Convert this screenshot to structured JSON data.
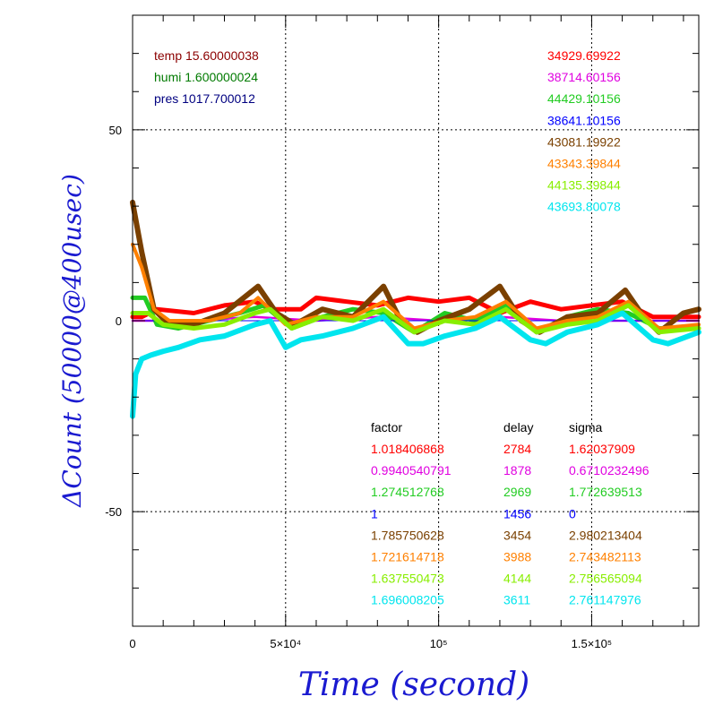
{
  "chart_data": {
    "type": "line",
    "xlabel": "Time (second)",
    "ylabel": "ΔCount (50000@400usec)",
    "xlim": [
      0,
      185000
    ],
    "ylim": [
      -80,
      80
    ],
    "x_ticks": [
      {
        "value": 0,
        "label": "0"
      },
      {
        "value": 50000,
        "label": "5×10⁴"
      },
      {
        "value": 100000,
        "label": "10⁵"
      },
      {
        "value": 150000,
        "label": "1.5×10⁵"
      }
    ],
    "y_ticks": [
      {
        "value": 50,
        "label": "50"
      },
      {
        "value": 0,
        "label": "0"
      },
      {
        "value": -50,
        "label": "-50"
      }
    ],
    "grid": true,
    "env": [
      {
        "text": "temp 15.60000038",
        "color": "#8b0000"
      },
      {
        "text": "humi 1.600000024",
        "color": "#007a00"
      },
      {
        "text": "pres 1017.700012",
        "color": "#000080"
      }
    ],
    "table_headers": [
      "factor",
      "delay",
      "sigma"
    ],
    "series": [
      {
        "color": "#ff0000",
        "mean": "34929.69922",
        "factor": "1.018406868",
        "delay": "2784",
        "sigma": "1.62037909",
        "points": [
          [
            0,
            1
          ],
          [
            3000,
            1
          ],
          [
            8000,
            3
          ],
          [
            20000,
            2
          ],
          [
            30000,
            4
          ],
          [
            40000,
            5
          ],
          [
            45000,
            3
          ],
          [
            55000,
            3
          ],
          [
            60000,
            6
          ],
          [
            70000,
            5
          ],
          [
            80000,
            4
          ],
          [
            90000,
            6
          ],
          [
            100000,
            5
          ],
          [
            110000,
            6
          ],
          [
            120000,
            2
          ],
          [
            130000,
            5
          ],
          [
            140000,
            3
          ],
          [
            150000,
            4
          ],
          [
            160000,
            5
          ],
          [
            170000,
            1
          ],
          [
            185000,
            1
          ]
        ]
      },
      {
        "color": "#e000e0",
        "mean": "38714.60156",
        "factor": "0.9940540791",
        "delay": "1878",
        "sigma": "0.6710232496",
        "points": [
          [
            0,
            0
          ],
          [
            20000,
            0
          ],
          [
            40000,
            1
          ],
          [
            60000,
            0
          ],
          [
            80000,
            1
          ],
          [
            100000,
            0
          ],
          [
            120000,
            1
          ],
          [
            140000,
            0
          ],
          [
            160000,
            0
          ],
          [
            185000,
            0
          ]
        ]
      },
      {
        "color": "#22cc22",
        "mean": "44429.10156",
        "factor": "1.274512768",
        "delay": "2969",
        "sigma": "1.772639513",
        "points": [
          [
            0,
            6
          ],
          [
            4000,
            6
          ],
          [
            8000,
            -1
          ],
          [
            15000,
            -2
          ],
          [
            25000,
            0
          ],
          [
            35000,
            2
          ],
          [
            43000,
            4
          ],
          [
            52000,
            -2
          ],
          [
            62000,
            1
          ],
          [
            72000,
            3
          ],
          [
            82000,
            2
          ],
          [
            92000,
            -3
          ],
          [
            102000,
            2
          ],
          [
            112000,
            0
          ],
          [
            122000,
            4
          ],
          [
            132000,
            -3
          ],
          [
            142000,
            1
          ],
          [
            152000,
            3
          ],
          [
            162000,
            2
          ],
          [
            172000,
            -2
          ],
          [
            185000,
            -2
          ]
        ]
      },
      {
        "color": "#0000ff",
        "mean": "38641.10156",
        "factor": "1",
        "delay": "1456",
        "sigma": "0",
        "points": [
          [
            0,
            0
          ],
          [
            185000,
            0
          ]
        ]
      },
      {
        "color": "#7a4000",
        "mean": "43081.19922",
        "factor": "1.785750628",
        "delay": "3454",
        "sigma": "2.980213404",
        "points": [
          [
            0,
            31
          ],
          [
            3000,
            18
          ],
          [
            7000,
            3
          ],
          [
            12000,
            -1
          ],
          [
            20000,
            -1
          ],
          [
            30000,
            2
          ],
          [
            41000,
            9
          ],
          [
            47000,
            2
          ],
          [
            53000,
            -1
          ],
          [
            62000,
            3
          ],
          [
            72000,
            1
          ],
          [
            82000,
            9
          ],
          [
            87000,
            1
          ],
          [
            93000,
            -3
          ],
          [
            100000,
            0
          ],
          [
            110000,
            3
          ],
          [
            120000,
            9
          ],
          [
            127000,
            0
          ],
          [
            133000,
            -3
          ],
          [
            142000,
            1
          ],
          [
            152000,
            2
          ],
          [
            161000,
            8
          ],
          [
            167000,
            1
          ],
          [
            172000,
            -3
          ],
          [
            180000,
            2
          ],
          [
            185000,
            3
          ]
        ]
      },
      {
        "color": "#ff8000",
        "mean": "43343.39844",
        "factor": "1.721614718",
        "delay": "3988",
        "sigma": "2.743482113",
        "points": [
          [
            0,
            20
          ],
          [
            3000,
            14
          ],
          [
            7000,
            3
          ],
          [
            12000,
            0
          ],
          [
            25000,
            0
          ],
          [
            35000,
            2
          ],
          [
            41000,
            6
          ],
          [
            50000,
            -1
          ],
          [
            60000,
            1
          ],
          [
            72000,
            1
          ],
          [
            82000,
            5
          ],
          [
            92000,
            -2
          ],
          [
            102000,
            0
          ],
          [
            112000,
            1
          ],
          [
            122000,
            5
          ],
          [
            132000,
            -2
          ],
          [
            142000,
            0
          ],
          [
            152000,
            1
          ],
          [
            162000,
            5
          ],
          [
            172000,
            -2
          ],
          [
            185000,
            -1
          ]
        ]
      },
      {
        "color": "#88ee00",
        "mean": "44135.39844",
        "factor": "1.637550473",
        "delay": "4144",
        "sigma": "2.756565094",
        "points": [
          [
            0,
            2
          ],
          [
            5000,
            2
          ],
          [
            10000,
            -1
          ],
          [
            20000,
            -2
          ],
          [
            30000,
            -1
          ],
          [
            40000,
            2
          ],
          [
            45000,
            3
          ],
          [
            52000,
            -2
          ],
          [
            62000,
            1
          ],
          [
            72000,
            0
          ],
          [
            82000,
            3
          ],
          [
            92000,
            -3
          ],
          [
            102000,
            0
          ],
          [
            112000,
            -1
          ],
          [
            122000,
            3
          ],
          [
            132000,
            -3
          ],
          [
            142000,
            -1
          ],
          [
            152000,
            0
          ],
          [
            162000,
            4
          ],
          [
            172000,
            -3
          ],
          [
            185000,
            -2
          ]
        ]
      },
      {
        "color": "#00e5ee",
        "mean": "43693.80078",
        "factor": "1.696008205",
        "delay": "3611",
        "sigma": "2.761147976",
        "points": [
          [
            0,
            -25
          ],
          [
            1000,
            -14
          ],
          [
            3000,
            -10
          ],
          [
            6000,
            -9
          ],
          [
            10000,
            -8
          ],
          [
            15000,
            -7
          ],
          [
            22000,
            -5
          ],
          [
            30000,
            -4
          ],
          [
            40000,
            -1
          ],
          [
            45000,
            0
          ],
          [
            50000,
            -7
          ],
          [
            55000,
            -5
          ],
          [
            62000,
            -4
          ],
          [
            72000,
            -2
          ],
          [
            82000,
            1
          ],
          [
            90000,
            -6
          ],
          [
            95000,
            -6
          ],
          [
            102000,
            -4
          ],
          [
            112000,
            -2
          ],
          [
            120000,
            1
          ],
          [
            130000,
            -5
          ],
          [
            135000,
            -6
          ],
          [
            142000,
            -3
          ],
          [
            152000,
            -1
          ],
          [
            160000,
            2
          ],
          [
            170000,
            -5
          ],
          [
            175000,
            -6
          ],
          [
            185000,
            -3
          ]
        ]
      }
    ]
  }
}
